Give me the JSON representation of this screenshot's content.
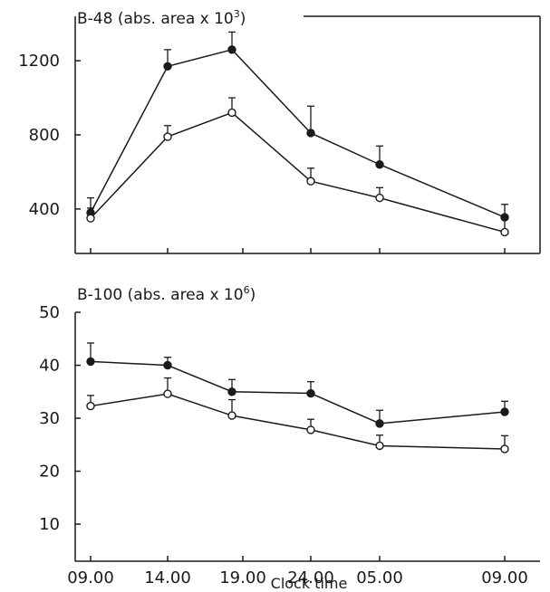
{
  "chart_data": [
    {
      "type": "line",
      "title_main": "B-48 (abs. area x 10",
      "title_sup": "3",
      "title_close": ")",
      "x": [
        "09.00",
        "14.00",
        "19.00",
        "24.00",
        "05.00",
        "09.00"
      ],
      "yticks": [
        "400",
        "800",
        "1200"
      ],
      "ylim": [
        160,
        1440
      ],
      "series": [
        {
          "marker": "filled",
          "values": [
            380,
            1170,
            1260,
            810,
            640,
            355
          ],
          "errors": [
            80,
            90,
            95,
            145,
            100,
            70
          ]
        },
        {
          "marker": "open",
          "values": [
            350,
            790,
            920,
            550,
            460,
            275
          ],
          "errors": [
            55,
            60,
            80,
            70,
            55,
            70
          ]
        }
      ]
    },
    {
      "type": "line",
      "title_main": "B-100 (abs. area x 10",
      "title_sup": "6",
      "title_close": ")",
      "x": [
        "09.00",
        "14.00",
        "19.00",
        "24.00",
        "05.00",
        "09.00"
      ],
      "yticks": [
        "10",
        "20",
        "30",
        "40",
        "50"
      ],
      "ylim": [
        3,
        50
      ],
      "series": [
        {
          "marker": "filled",
          "values": [
            40.7,
            40,
            35,
            34.7,
            29,
            31.2
          ],
          "errors": [
            3.5,
            1.5,
            2.3,
            2.2,
            2.5,
            2
          ]
        },
        {
          "marker": "open",
          "values": [
            32.3,
            34.6,
            30.5,
            27.8,
            24.8,
            24.2
          ],
          "errors": [
            2,
            3,
            3,
            2,
            2,
            2.5
          ]
        }
      ],
      "xlabel": "Clock time"
    }
  ]
}
